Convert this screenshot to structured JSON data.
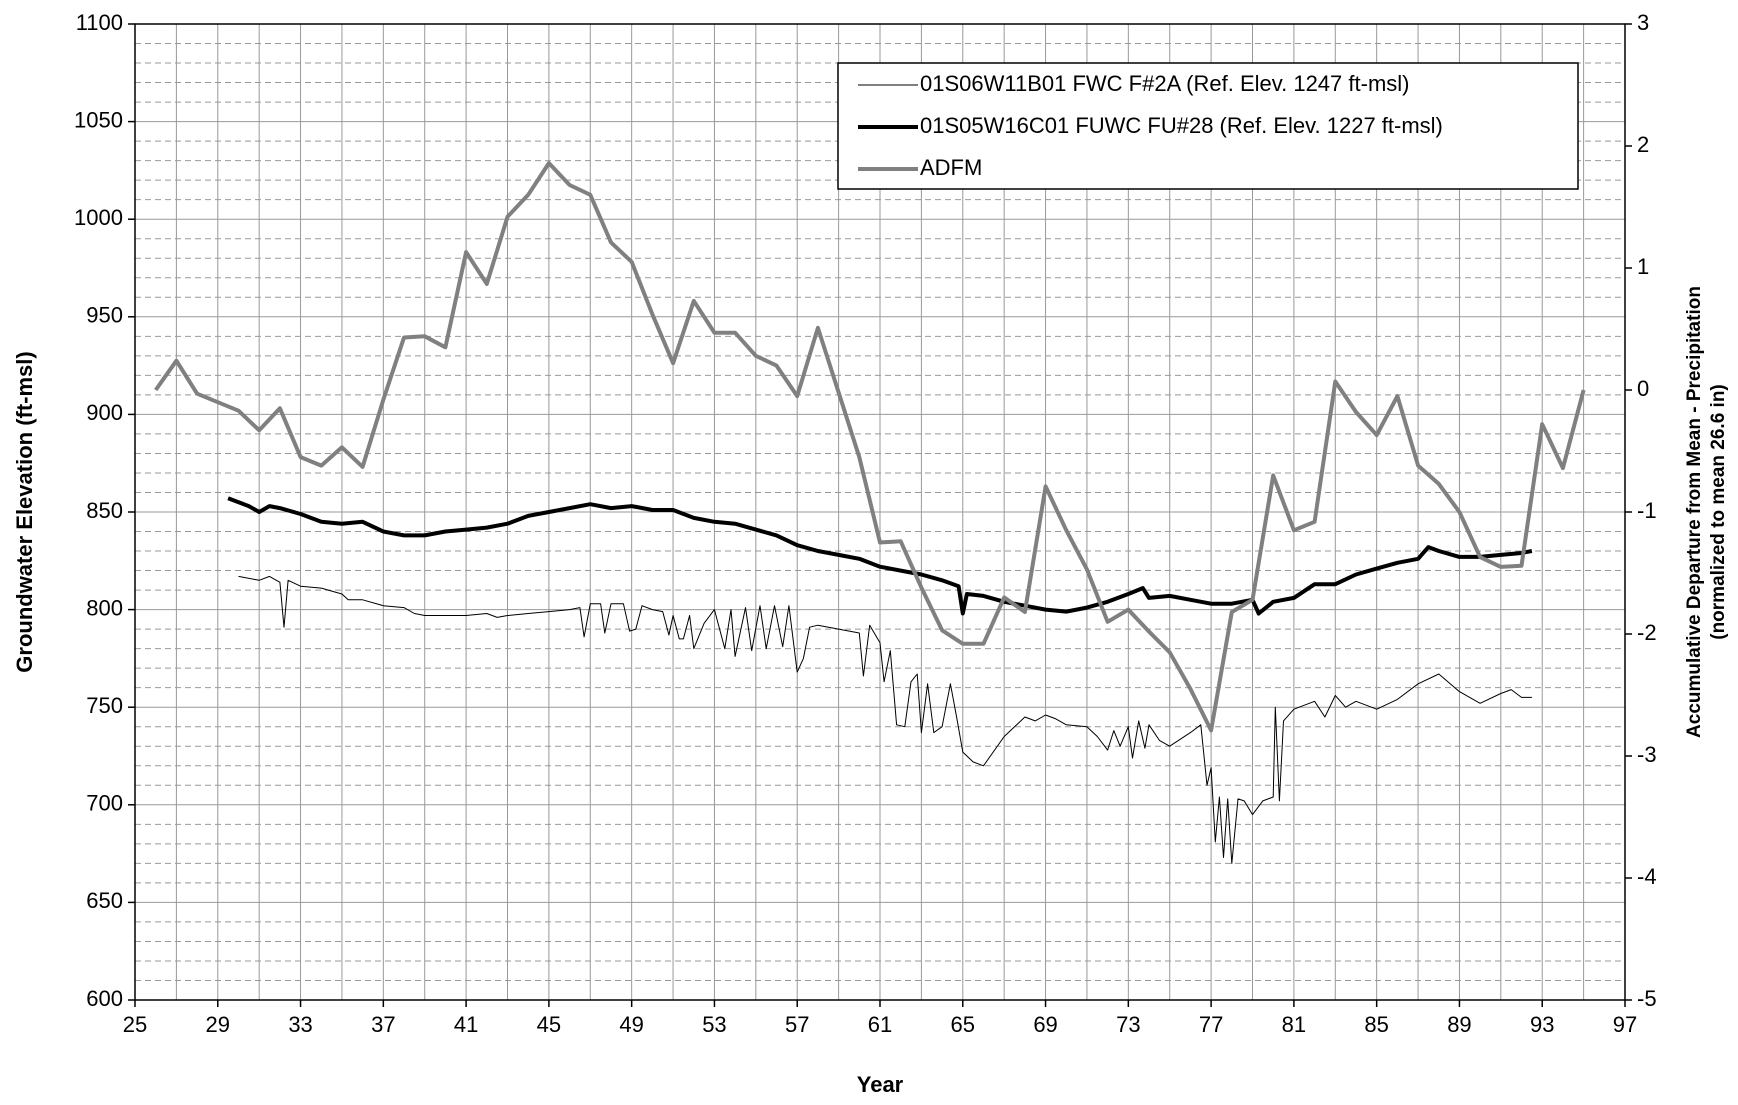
{
  "chart_data": {
    "type": "line",
    "xlabel": "Year",
    "ylabel": "Groundwater Elevation (ft-msl)",
    "y2label": [
      "Accumulative Departure from Mean - Precipitation",
      "(normalized to mean 26.6 in)"
    ],
    "xlim": [
      25,
      97
    ],
    "xticks": [
      25,
      29,
      33,
      37,
      41,
      45,
      49,
      53,
      57,
      61,
      65,
      69,
      73,
      77,
      81,
      85,
      89,
      93,
      97
    ],
    "ylim": [
      600,
      1100
    ],
    "yticks": [
      600,
      650,
      700,
      750,
      800,
      850,
      900,
      950,
      1000,
      1050,
      1100
    ],
    "y2lim": [
      -5,
      3
    ],
    "y2ticks": [
      -5,
      -4,
      -3,
      -2,
      -1,
      0,
      1,
      2,
      3
    ],
    "grid": true,
    "minor_grid": {
      "x": 2,
      "y": 5
    },
    "legend": "upper right",
    "series": [
      {
        "name": "01S06W11B01 FWC F#2A (Ref. Elev. 1247 ft-msl)",
        "color": "#000000",
        "width": 1,
        "axis": "y",
        "x": [
          30,
          31,
          31.5,
          32,
          32.2,
          32.4,
          33,
          34,
          35,
          35.3,
          36,
          37,
          38,
          38.5,
          39,
          40,
          41,
          42,
          42.5,
          43,
          44,
          45,
          46,
          46.5,
          46.7,
          47,
          47.5,
          47.7,
          48,
          48.6,
          48.9,
          49.2,
          49.5,
          50,
          50.5,
          50.8,
          51,
          51.3,
          51.5,
          51.8,
          52,
          52.5,
          53,
          53.5,
          53.8,
          54,
          54.5,
          54.8,
          55.2,
          55.5,
          55.9,
          56.3,
          56.6,
          57,
          57.3,
          57.6,
          58,
          59,
          60,
          60.2,
          60.5,
          61,
          61.2,
          61.5,
          61.8,
          62.2,
          62.5,
          62.8,
          63,
          63.3,
          63.6,
          64,
          64.4,
          64.7,
          65,
          65.5,
          66,
          67,
          68,
          68.5,
          69,
          69.5,
          70,
          71,
          71.5,
          72,
          72.3,
          72.6,
          73,
          73.2,
          73.5,
          73.8,
          74,
          74.5,
          75,
          76,
          76.5,
          76.8,
          77,
          77.2,
          77.4,
          77.6,
          77.8,
          78,
          78.3,
          78.6,
          79,
          79.5,
          80,
          80.1,
          80.3,
          80.5,
          81,
          82,
          82.5,
          83,
          83.5,
          84,
          85,
          86,
          87,
          88,
          89,
          90,
          91,
          91.5,
          92,
          92.5
        ],
        "values": [
          817,
          815,
          817,
          814,
          791,
          815,
          812,
          811,
          808,
          805,
          805,
          802,
          801,
          798,
          797,
          797,
          797,
          798,
          796,
          797,
          798,
          799,
          800,
          801,
          786,
          803,
          803,
          788,
          803,
          803,
          789,
          790,
          802,
          800,
          799,
          787,
          797,
          785,
          785,
          797,
          780,
          793,
          800,
          780,
          800,
          776,
          801,
          779,
          802,
          780,
          802,
          781,
          802,
          768,
          775,
          791,
          792,
          790,
          788,
          766,
          792,
          783,
          763,
          779,
          741,
          740,
          763,
          767,
          737,
          762,
          737,
          740,
          762,
          745,
          727,
          722,
          720,
          735,
          745,
          743,
          746,
          744,
          741,
          740,
          735,
          728,
          738,
          730,
          740,
          724,
          743,
          729,
          741,
          733,
          730,
          737,
          741,
          710,
          719,
          681,
          704,
          673,
          703,
          670,
          703,
          702,
          695,
          702,
          704,
          750,
          702,
          743,
          749,
          753,
          745,
          756,
          750,
          753,
          749,
          754,
          762,
          767,
          758,
          752,
          757,
          759,
          755,
          755
        ]
      },
      {
        "name": "01S05W16C01 FUWC FU#28 (Ref. Elev. 1227 ft-msl)",
        "color": "#000000",
        "width": 4,
        "axis": "y",
        "x": [
          29.5,
          30.5,
          31,
          31.5,
          32,
          33,
          34,
          35,
          36,
          37,
          38,
          39,
          40,
          41,
          42,
          43,
          44,
          45,
          46,
          47,
          48,
          49,
          50,
          51,
          52,
          53,
          54,
          55,
          56,
          57,
          58,
          59,
          60,
          61,
          62,
          63,
          64,
          64.8,
          65,
          65.2,
          66,
          67,
          68,
          69,
          70,
          71,
          72,
          73,
          73.7,
          74,
          75,
          76,
          77,
          78,
          79,
          79.3,
          80,
          81,
          82,
          83,
          84,
          85,
          86,
          87,
          87.5,
          88,
          89,
          90,
          91,
          92,
          92.5
        ],
        "values": [
          857,
          853,
          850,
          853,
          852,
          849,
          845,
          844,
          845,
          840,
          838,
          838,
          840,
          841,
          842,
          844,
          848,
          850,
          852,
          854,
          852,
          853,
          851,
          851,
          847,
          845,
          844,
          841,
          838,
          833,
          830,
          828,
          826,
          822,
          820,
          818,
          815,
          812,
          798,
          808,
          807,
          804,
          802,
          800,
          799,
          801,
          804,
          808,
          811,
          806,
          807,
          805,
          803,
          803,
          805,
          798,
          804,
          806,
          813,
          813,
          818,
          821,
          824,
          826,
          832,
          830,
          827,
          827,
          828,
          829,
          830
        ]
      },
      {
        "name": "ADFM",
        "color": "#808080",
        "width": 4,
        "axis": "y2",
        "x": [
          26,
          27,
          28,
          29,
          30,
          31,
          32,
          33,
          34,
          35,
          36,
          37,
          38,
          39,
          40,
          41,
          42,
          43,
          44,
          45,
          46,
          47,
          48,
          49,
          50,
          51,
          52,
          53,
          54,
          55,
          56,
          57,
          58,
          59,
          60,
          61,
          62,
          63,
          64,
          65,
          66,
          67,
          68,
          69,
          70,
          71,
          72,
          73,
          74,
          75,
          76,
          77,
          78,
          79,
          80,
          81,
          82,
          83,
          84,
          85,
          86,
          87,
          88,
          89,
          90,
          91,
          92,
          93,
          94,
          95
        ],
        "values": [
          0,
          0.24,
          -0.03,
          -0.1,
          -0.17,
          -0.33,
          -0.15,
          -0.55,
          -0.62,
          -0.47,
          -0.63,
          -0.08,
          0.43,
          0.44,
          0.35,
          1.13,
          0.87,
          1.42,
          1.6,
          1.86,
          1.68,
          1.6,
          1.21,
          1.05,
          0.62,
          0.22,
          0.73,
          0.47,
          0.47,
          0.28,
          0.2,
          -0.05,
          0.51,
          -0.02,
          -0.55,
          -1.25,
          -1.24,
          -1.62,
          -1.97,
          -2.08,
          -2.08,
          -1.7,
          -1.82,
          -0.79,
          -1.15,
          -1.47,
          -1.9,
          -1.8,
          -1.98,
          -2.15,
          -2.45,
          -2.79,
          -1.82,
          -1.72,
          -0.7,
          -1.15,
          -1.08,
          0.07,
          -0.18,
          -0.37,
          -0.05,
          -0.62,
          -0.77,
          -1.0,
          -1.37,
          -1.45,
          -1.44,
          -0.28,
          -0.64,
          0
        ]
      }
    ]
  }
}
